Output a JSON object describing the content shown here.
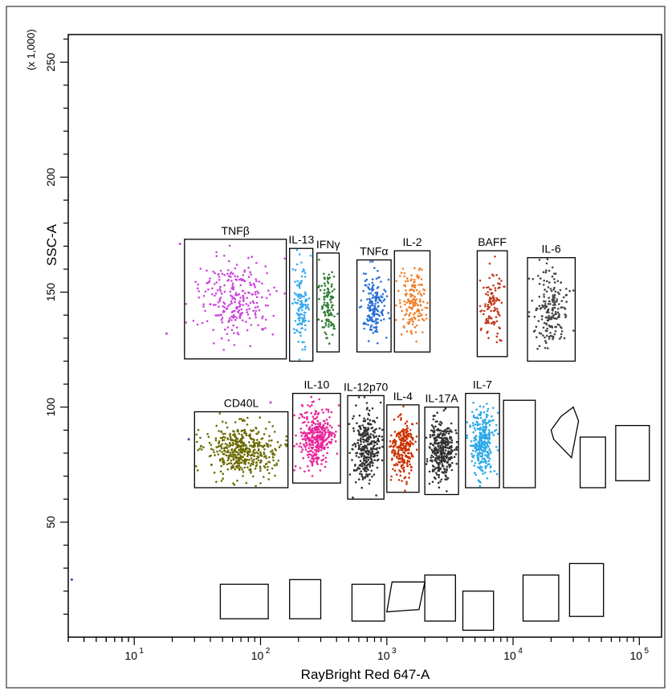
{
  "chart_data": {
    "type": "scatter",
    "title": "",
    "xlabel": "RayBright Red 647-A",
    "ylabel": "SSC-A",
    "y_multiplier_label": "(x 1,000)",
    "x_scale": "log",
    "xlim": [
      3,
      150000
    ],
    "ylim": [
      0,
      262
    ],
    "x_ticks": [
      {
        "value": 10,
        "label": "10",
        "exp": "1"
      },
      {
        "value": 100,
        "label": "10",
        "exp": "2"
      },
      {
        "value": 1000,
        "label": "10",
        "exp": "3"
      },
      {
        "value": 10000,
        "label": "10",
        "exp": "4"
      },
      {
        "value": 100000,
        "label": "10",
        "exp": "5"
      }
    ],
    "y_ticks": [
      50,
      100,
      150,
      200,
      250
    ],
    "gates": [
      {
        "label": "TNFβ",
        "color": "#cc44dd",
        "x": [
          25,
          160
        ],
        "y": [
          121,
          173
        ],
        "n": 260
      },
      {
        "label": "IL-13",
        "color": "#33aaee",
        "x": [
          170,
          260
        ],
        "y": [
          120,
          169
        ],
        "n": 120
      },
      {
        "label": "IFNγ",
        "color": "#2e7d32",
        "x": [
          280,
          420
        ],
        "y": [
          124,
          167
        ],
        "n": 110
      },
      {
        "label": "TNFα",
        "color": "#2a6fd6",
        "x": [
          580,
          1080
        ],
        "y": [
          124,
          164
        ],
        "n": 170
      },
      {
        "label": "IL-2",
        "color": "#f07f2b",
        "x": [
          1150,
          2200
        ],
        "y": [
          124,
          168
        ],
        "n": 160
      },
      {
        "label": "BAFF",
        "color": "#c0391b",
        "x": [
          5200,
          9000
        ],
        "y": [
          122,
          168
        ],
        "n": 110
      },
      {
        "label": "IL-6",
        "color": "#444444",
        "x": [
          13000,
          31000
        ],
        "y": [
          120,
          165
        ],
        "n": 190
      },
      {
        "label": "CD40L",
        "color": "#6b6b00",
        "x": [
          30,
          165
        ],
        "y": [
          65,
          98
        ],
        "n": 460
      },
      {
        "label": "IL-10",
        "color": "#e8249a",
        "x": [
          180,
          430
        ],
        "y": [
          67,
          106
        ],
        "n": 330
      },
      {
        "label": "IL-12p70",
        "color": "#333333",
        "x": [
          490,
          950
        ],
        "y": [
          60,
          105
        ],
        "n": 300
      },
      {
        "label": "IL-4",
        "color": "#cc3300",
        "x": [
          1000,
          1800
        ],
        "y": [
          63,
          101
        ],
        "n": 240
      },
      {
        "label": "IL-17A",
        "color": "#333333",
        "x": [
          2000,
          3700
        ],
        "y": [
          62,
          100
        ],
        "n": 350
      },
      {
        "label": "IL-7",
        "color": "#2aa8e8",
        "x": [
          4200,
          7800
        ],
        "y": [
          65,
          106
        ],
        "n": 280
      }
    ],
    "empty_gates": [
      {
        "x": [
          8400,
          15000
        ],
        "y": [
          65,
          103
        ]
      },
      {
        "x": [
          34000,
          54000
        ],
        "y": [
          65,
          87
        ]
      },
      {
        "x": [
          65000,
          120000
        ],
        "y": [
          68,
          92
        ]
      },
      {
        "x": [
          48,
          115
        ],
        "y": [
          8,
          23
        ]
      },
      {
        "x": [
          170,
          300
        ],
        "y": [
          8,
          25
        ]
      },
      {
        "x": [
          530,
          960
        ],
        "y": [
          7,
          23
        ]
      },
      {
        "x": [
          2000,
          3500
        ],
        "y": [
          7,
          27
        ]
      },
      {
        "x": [
          4000,
          7000
        ],
        "y": [
          3,
          20
        ]
      },
      {
        "x": [
          12000,
          23000
        ],
        "y": [
          7,
          27
        ]
      },
      {
        "x": [
          28000,
          52000
        ],
        "y": [
          9,
          32
        ]
      }
    ],
    "poly_gates": [
      {
        "points": [
          [
            20000,
            90
          ],
          [
            24000,
            96
          ],
          [
            30000,
            100
          ],
          [
            33000,
            94
          ],
          [
            29000,
            78
          ],
          [
            21000,
            86
          ]
        ]
      },
      {
        "points": [
          [
            1100,
            24
          ],
          [
            2000,
            24
          ],
          [
            1800,
            12
          ],
          [
            1000,
            11
          ]
        ]
      }
    ],
    "stray_points": [
      {
        "x": 18,
        "y": 132,
        "color": "#cc44dd"
      },
      {
        "x": 23,
        "y": 171,
        "color": "#cc44dd"
      },
      {
        "x": 27,
        "y": 86,
        "color": "#3344aa"
      },
      {
        "x": 3.2,
        "y": 25,
        "color": "#3344aa"
      },
      {
        "x": 120,
        "y": 102,
        "color": "#cc44dd"
      }
    ]
  }
}
